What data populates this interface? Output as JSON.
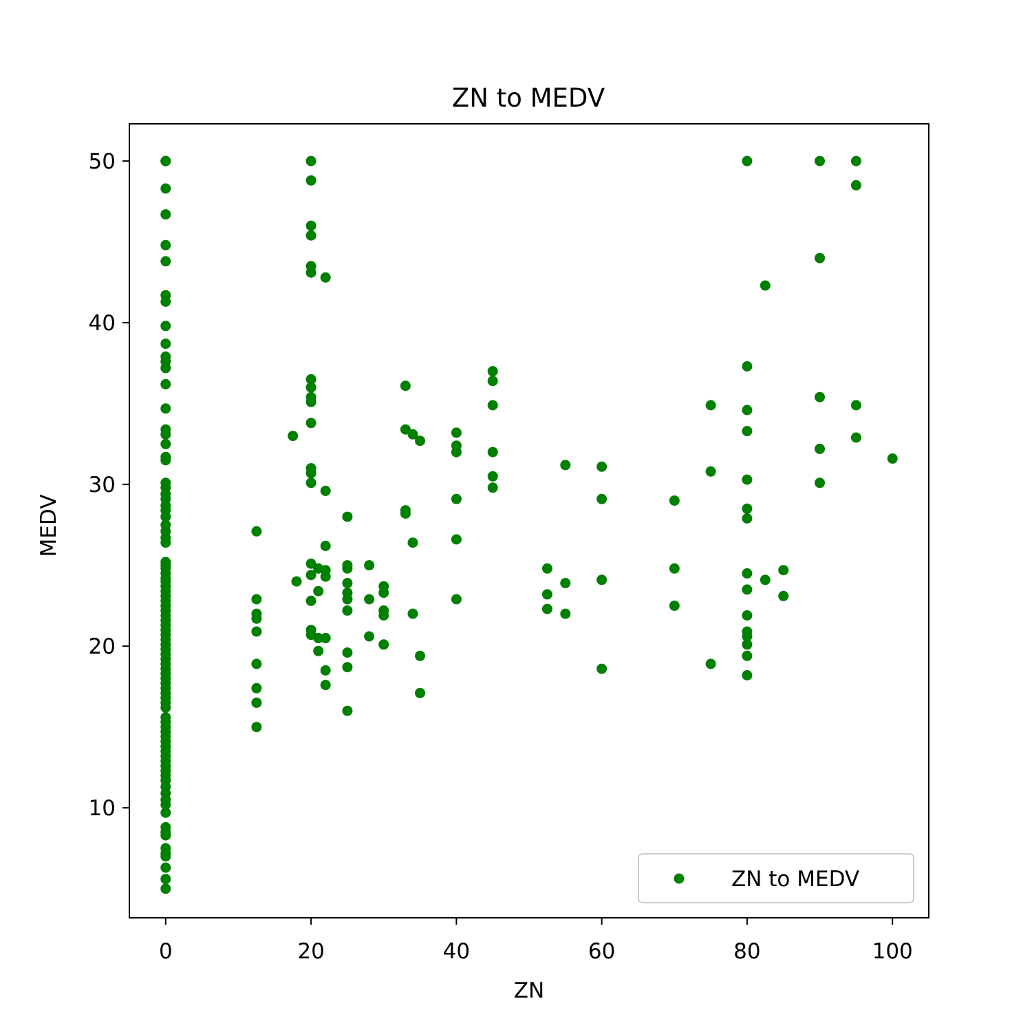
{
  "chart_data": {
    "type": "scatter",
    "title": "ZN to MEDV",
    "xlabel": "ZN",
    "ylabel": "MEDV",
    "xlim": [
      -5,
      105
    ],
    "ylim": [
      3.2,
      52.3
    ],
    "xticks": [
      0,
      20,
      40,
      60,
      80,
      100
    ],
    "yticks": [
      10,
      20,
      30,
      40,
      50
    ],
    "grid": false,
    "legend_position": "lower-right",
    "series": [
      {
        "name": "ZN to MEDV",
        "color": "#008000",
        "points": [
          [
            0,
            50
          ],
          [
            0,
            50
          ],
          [
            0,
            50
          ],
          [
            0,
            48.3
          ],
          [
            0,
            46.7
          ],
          [
            0,
            44.8
          ],
          [
            0,
            43.8
          ],
          [
            0,
            41.7
          ],
          [
            0,
            41.3
          ],
          [
            0,
            39.8
          ],
          [
            0,
            38.7
          ],
          [
            0,
            37.9
          ],
          [
            0,
            37.6
          ],
          [
            0,
            37.2
          ],
          [
            0,
            36.2
          ],
          [
            0,
            34.7
          ],
          [
            0,
            33.4
          ],
          [
            0,
            33.1
          ],
          [
            0,
            32.5
          ],
          [
            0,
            31.7
          ],
          [
            0,
            31.5
          ],
          [
            0,
            30.1
          ],
          [
            0,
            29.8
          ],
          [
            0,
            29.4
          ],
          [
            0,
            29.1
          ],
          [
            0,
            28.7
          ],
          [
            0,
            28.4
          ],
          [
            0,
            28.0
          ],
          [
            0,
            27.5
          ],
          [
            0,
            27.1
          ],
          [
            0,
            26.7
          ],
          [
            0,
            26.4
          ],
          [
            0,
            25.2
          ],
          [
            0,
            25.0
          ],
          [
            0,
            24.8
          ],
          [
            0,
            24.5
          ],
          [
            0,
            24.2
          ],
          [
            0,
            24.0
          ],
          [
            0,
            23.7
          ],
          [
            0,
            23.4
          ],
          [
            0,
            23.1
          ],
          [
            0,
            22.8
          ],
          [
            0,
            22.5
          ],
          [
            0,
            22.2
          ],
          [
            0,
            21.9
          ],
          [
            0,
            21.6
          ],
          [
            0,
            21.3
          ],
          [
            0,
            21.0
          ],
          [
            0,
            20.7
          ],
          [
            0,
            20.4
          ],
          [
            0,
            20.1
          ],
          [
            0,
            19.8
          ],
          [
            0,
            19.5
          ],
          [
            0,
            19.2
          ],
          [
            0,
            18.9
          ],
          [
            0,
            18.6
          ],
          [
            0,
            18.3
          ],
          [
            0,
            18.0
          ],
          [
            0,
            17.7
          ],
          [
            0,
            17.4
          ],
          [
            0,
            17.1
          ],
          [
            0,
            16.8
          ],
          [
            0,
            16.5
          ],
          [
            0,
            16.2
          ],
          [
            0,
            15.6
          ],
          [
            0,
            15.3
          ],
          [
            0,
            15.0
          ],
          [
            0,
            14.7
          ],
          [
            0,
            14.4
          ],
          [
            0,
            14.1
          ],
          [
            0,
            13.8
          ],
          [
            0,
            13.5
          ],
          [
            0,
            13.2
          ],
          [
            0,
            12.9
          ],
          [
            0,
            12.6
          ],
          [
            0,
            12.3
          ],
          [
            0,
            12.0
          ],
          [
            0,
            11.7
          ],
          [
            0,
            11.3
          ],
          [
            0,
            10.9
          ],
          [
            0,
            10.5
          ],
          [
            0,
            10.2
          ],
          [
            0,
            9.7
          ],
          [
            0,
            8.8
          ],
          [
            0,
            8.5
          ],
          [
            0,
            8.3
          ],
          [
            0,
            7.5
          ],
          [
            0,
            7.2
          ],
          [
            0,
            7.0
          ],
          [
            0,
            6.3
          ],
          [
            0,
            5.6
          ],
          [
            0,
            5.0
          ],
          [
            12.5,
            27.1
          ],
          [
            12.5,
            22.9
          ],
          [
            12.5,
            22.0
          ],
          [
            12.5,
            21.7
          ],
          [
            12.5,
            20.9
          ],
          [
            12.5,
            18.9
          ],
          [
            12.5,
            17.4
          ],
          [
            12.5,
            16.5
          ],
          [
            12.5,
            15.0
          ],
          [
            17.5,
            33.0
          ],
          [
            18,
            24.0
          ],
          [
            20,
            50.0
          ],
          [
            20,
            48.8
          ],
          [
            20,
            46.0
          ],
          [
            20,
            45.4
          ],
          [
            20,
            43.5
          ],
          [
            20,
            43.1
          ],
          [
            20,
            36.5
          ],
          [
            20,
            36.0
          ],
          [
            20,
            35.4
          ],
          [
            20,
            35.1
          ],
          [
            20,
            33.8
          ],
          [
            20,
            31.0
          ],
          [
            20,
            30.7
          ],
          [
            20,
            30.1
          ],
          [
            20,
            25.1
          ],
          [
            20,
            24.4
          ],
          [
            20,
            22.8
          ],
          [
            20,
            21.0
          ],
          [
            20,
            20.7
          ],
          [
            21,
            24.8
          ],
          [
            21,
            23.4
          ],
          [
            21,
            20.5
          ],
          [
            21,
            19.7
          ],
          [
            22,
            42.8
          ],
          [
            22,
            29.6
          ],
          [
            22,
            26.2
          ],
          [
            22,
            24.7
          ],
          [
            22,
            24.3
          ],
          [
            22,
            20.5
          ],
          [
            22,
            18.5
          ],
          [
            22,
            17.6
          ],
          [
            25,
            28.0
          ],
          [
            25,
            25.0
          ],
          [
            25,
            24.8
          ],
          [
            25,
            23.9
          ],
          [
            25,
            23.3
          ],
          [
            25,
            22.9
          ],
          [
            25,
            22.2
          ],
          [
            25,
            19.6
          ],
          [
            25,
            18.7
          ],
          [
            25,
            16.0
          ],
          [
            28,
            25.0
          ],
          [
            28,
            22.9
          ],
          [
            28,
            20.6
          ],
          [
            30,
            23.7
          ],
          [
            30,
            23.3
          ],
          [
            30,
            22.2
          ],
          [
            30,
            21.9
          ],
          [
            30,
            20.1
          ],
          [
            33,
            36.1
          ],
          [
            33,
            33.4
          ],
          [
            33,
            28.4
          ],
          [
            33,
            28.2
          ],
          [
            34,
            33.1
          ],
          [
            34,
            26.4
          ],
          [
            34,
            22.0
          ],
          [
            35,
            32.7
          ],
          [
            35,
            19.4
          ],
          [
            35,
            17.1
          ],
          [
            40,
            33.2
          ],
          [
            40,
            32.4
          ],
          [
            40,
            32.0
          ],
          [
            40,
            29.1
          ],
          [
            40,
            26.6
          ],
          [
            40,
            22.9
          ],
          [
            45,
            37.0
          ],
          [
            45,
            36.4
          ],
          [
            45,
            34.9
          ],
          [
            45,
            32.0
          ],
          [
            45,
            30.5
          ],
          [
            45,
            29.8
          ],
          [
            52.5,
            24.8
          ],
          [
            52.5,
            23.2
          ],
          [
            52.5,
            22.3
          ],
          [
            55,
            31.2
          ],
          [
            55,
            23.9
          ],
          [
            55,
            22.0
          ],
          [
            60,
            31.1
          ],
          [
            60,
            29.1
          ],
          [
            60,
            24.1
          ],
          [
            60,
            18.6
          ],
          [
            70,
            29.0
          ],
          [
            70,
            24.8
          ],
          [
            70,
            22.5
          ],
          [
            75,
            34.9
          ],
          [
            75,
            30.8
          ],
          [
            75,
            18.9
          ],
          [
            80,
            50.0
          ],
          [
            80,
            37.3
          ],
          [
            80,
            34.6
          ],
          [
            80,
            33.3
          ],
          [
            80,
            30.3
          ],
          [
            80,
            28.5
          ],
          [
            80,
            27.9
          ],
          [
            80,
            24.5
          ],
          [
            80,
            23.5
          ],
          [
            80,
            21.9
          ],
          [
            80,
            20.9
          ],
          [
            80,
            20.6
          ],
          [
            80,
            20.1
          ],
          [
            80,
            19.4
          ],
          [
            80,
            18.2
          ],
          [
            82.5,
            42.3
          ],
          [
            82.5,
            24.1
          ],
          [
            85,
            24.7
          ],
          [
            85,
            23.1
          ],
          [
            90,
            50.0
          ],
          [
            90,
            44.0
          ],
          [
            90,
            35.4
          ],
          [
            90,
            32.2
          ],
          [
            90,
            30.1
          ],
          [
            95,
            50.0
          ],
          [
            95,
            48.5
          ],
          [
            95,
            34.9
          ],
          [
            95,
            32.9
          ],
          [
            100,
            31.6
          ]
        ]
      }
    ]
  }
}
